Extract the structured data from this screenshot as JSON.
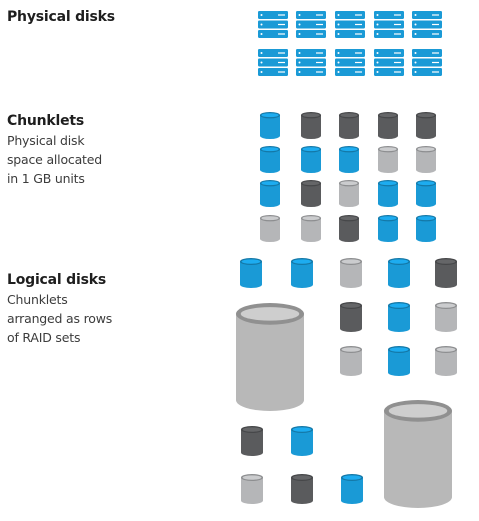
{
  "sections": {
    "physical": {
      "title": "Physical disks"
    },
    "chunklets": {
      "title": "Chunklets",
      "description": [
        "Physical disk",
        "space allocated",
        "in 1 GB units"
      ]
    },
    "logical": {
      "title": "Logical disks",
      "description": [
        "Chunklets",
        "arranged as rows",
        "of RAID sets"
      ]
    }
  },
  "colors": {
    "blue": "#1a9ad6",
    "dark": "#5a5b5d",
    "light": "#b5b6b8",
    "big": "#b8b8b8"
  },
  "icons": {
    "physical": "drive-stack-icon",
    "chunklet": "cylinder-icon",
    "logical": "large-cylinder-icon"
  },
  "physical_disks": {
    "columns": 5,
    "rows_per_group": 3,
    "groups": 2
  },
  "chunklet_grid": [
    [
      "blue",
      "dark",
      "dark",
      "dark",
      "dark"
    ],
    [
      "blue",
      "blue",
      "blue",
      "light",
      "light"
    ],
    [
      "blue",
      "dark",
      "light",
      "blue",
      "blue"
    ],
    [
      "light",
      "light",
      "dark",
      "blue",
      "blue"
    ]
  ],
  "logical_top_row": [
    "blue",
    "blue",
    "light",
    "blue",
    "dark"
  ],
  "logical_set_a": [
    [
      "dark",
      "blue",
      "light"
    ],
    [
      "light",
      "blue",
      "light"
    ]
  ],
  "logical_set_b": [
    [
      "dark",
      "blue",
      null
    ],
    [
      "light",
      "dark",
      "blue"
    ]
  ]
}
